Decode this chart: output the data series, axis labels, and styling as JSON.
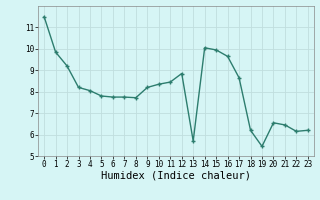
{
  "x": [
    0,
    1,
    2,
    3,
    4,
    5,
    6,
    7,
    8,
    9,
    10,
    11,
    12,
    13,
    14,
    15,
    16,
    17,
    18,
    19,
    20,
    21,
    22,
    23
  ],
  "y": [
    11.5,
    9.85,
    9.2,
    8.2,
    8.05,
    7.8,
    7.75,
    7.75,
    7.72,
    8.2,
    8.35,
    8.45,
    8.85,
    5.7,
    10.05,
    9.95,
    9.65,
    8.65,
    6.2,
    5.45,
    6.55,
    6.45,
    6.15,
    6.2
  ],
  "xlabel": "Humidex (Indice chaleur)",
  "ylim": [
    5,
    12
  ],
  "xlim": [
    -0.5,
    23.5
  ],
  "yticks": [
    5,
    6,
    7,
    8,
    9,
    10,
    11
  ],
  "xticks": [
    0,
    1,
    2,
    3,
    4,
    5,
    6,
    7,
    8,
    9,
    10,
    11,
    12,
    13,
    14,
    15,
    16,
    17,
    18,
    19,
    20,
    21,
    22,
    23
  ],
  "line_color": "#2d7d6e",
  "marker": "+",
  "bg_color": "#d6f5f5",
  "grid_color": "#c0dede",
  "grid_color_minor": "#e0f0f0",
  "tick_label_fontsize": 5.5,
  "xlabel_fontsize": 7.5,
  "linewidth": 1.0,
  "markersize": 3.5,
  "markeredgewidth": 1.0
}
